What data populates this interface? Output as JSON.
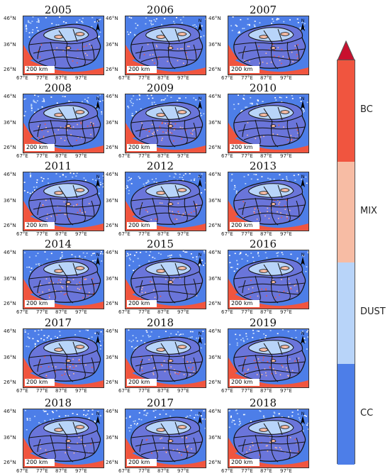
{
  "panels": [
    {
      "year": "2005"
    },
    {
      "year": "2006"
    },
    {
      "year": "2007"
    },
    {
      "year": "2008"
    },
    {
      "year": "2009"
    },
    {
      "year": "2010"
    },
    {
      "year": "2011"
    },
    {
      "year": "2012"
    },
    {
      "year": "2013"
    },
    {
      "year": "2014"
    },
    {
      "year": "2015"
    },
    {
      "year": "2016"
    },
    {
      "year": "2017"
    },
    {
      "year": "2018"
    },
    {
      "year": "2019"
    },
    {
      "year": "2018"
    },
    {
      "year": "2017"
    },
    {
      "year": "2018"
    }
  ],
  "axis": {
    "y_ticks": [
      "46°N",
      "36°N",
      "26°N"
    ],
    "x_ticks": [
      "67°E",
      "77°E",
      "87°E",
      "97°E"
    ]
  },
  "scale_bar": "200 km",
  "north_label": "N",
  "legend": {
    "classes": [
      {
        "name": "BC",
        "color": "#f0553f"
      },
      {
        "name": "MIX",
        "color": "#f7bca4"
      },
      {
        "name": "DUST",
        "color": "#b8d4f9"
      },
      {
        "name": "CC",
        "color": "#4d7ee8"
      }
    ],
    "arrow_color": "#c8102e"
  },
  "map_colors": {
    "cc_dark": "#6a75da",
    "cc_bright": "#4d7ee8",
    "dust": "#b8d4f9",
    "bc": "#f0553f",
    "mix": "#f7bca4",
    "boundary": "#111111"
  }
}
